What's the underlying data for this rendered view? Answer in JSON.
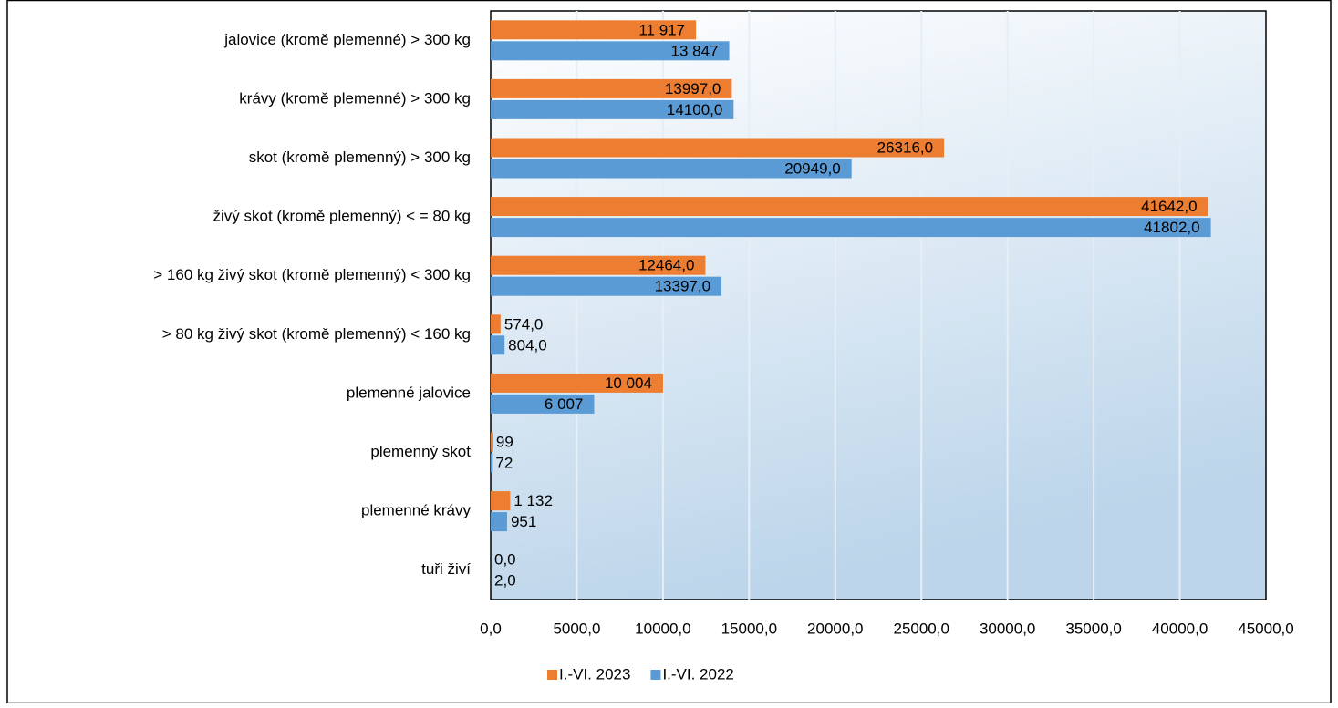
{
  "chart_data": {
    "type": "hbar",
    "categories": [
      "jalovice (kromě plemenné) > 300 kg",
      "krávy (kromě plemenné) > 300 kg",
      "skot (kromě plemenný) > 300 kg",
      "živý skot (kromě plemenný) < = 80 kg",
      "> 160 kg živý skot (kromě plemenný) < 300 kg",
      "> 80 kg živý skot (kromě plemenný) < 160 kg",
      "plemenné jalovice",
      "plemenný skot",
      "plemenné krávy",
      "tuři živí"
    ],
    "series": [
      {
        "name": "I.-VI. 2023",
        "color": "#ed7d31",
        "values": [
          11917,
          13997,
          26316,
          41642,
          12464,
          574,
          10004,
          99,
          1132,
          0
        ],
        "value_labels": [
          "11 917",
          "13997,0",
          "26316,0",
          "41642,0",
          "12464,0",
          "574,0",
          "10 004",
          "99",
          "1 132",
          "0,0"
        ]
      },
      {
        "name": "I.-VI. 2022",
        "color": "#5b9bd5",
        "values": [
          13847,
          14100,
          20949,
          41802,
          13397,
          804,
          6007,
          72,
          951,
          2
        ],
        "value_labels": [
          "13 847",
          "14100,0",
          "20949,0",
          "41802,0",
          "13397,0",
          "804,0",
          "6 007",
          "72",
          "951",
          "2,0"
        ]
      }
    ],
    "xlim": [
      0,
      45000
    ],
    "xticks": [
      {
        "value": 0,
        "label": "0,0"
      },
      {
        "value": 5000,
        "label": "5000,0"
      },
      {
        "value": 10000,
        "label": "10000,0"
      },
      {
        "value": 15000,
        "label": "15000,0"
      },
      {
        "value": 20000,
        "label": "20000,0"
      },
      {
        "value": 25000,
        "label": "25000,0"
      },
      {
        "value": 30000,
        "label": "30000,0"
      },
      {
        "value": 35000,
        "label": "35000,0"
      },
      {
        "value": 40000,
        "label": "40000,0"
      },
      {
        "value": 45000,
        "label": "45000,0"
      }
    ],
    "grid": true,
    "legend": "bottom"
  }
}
